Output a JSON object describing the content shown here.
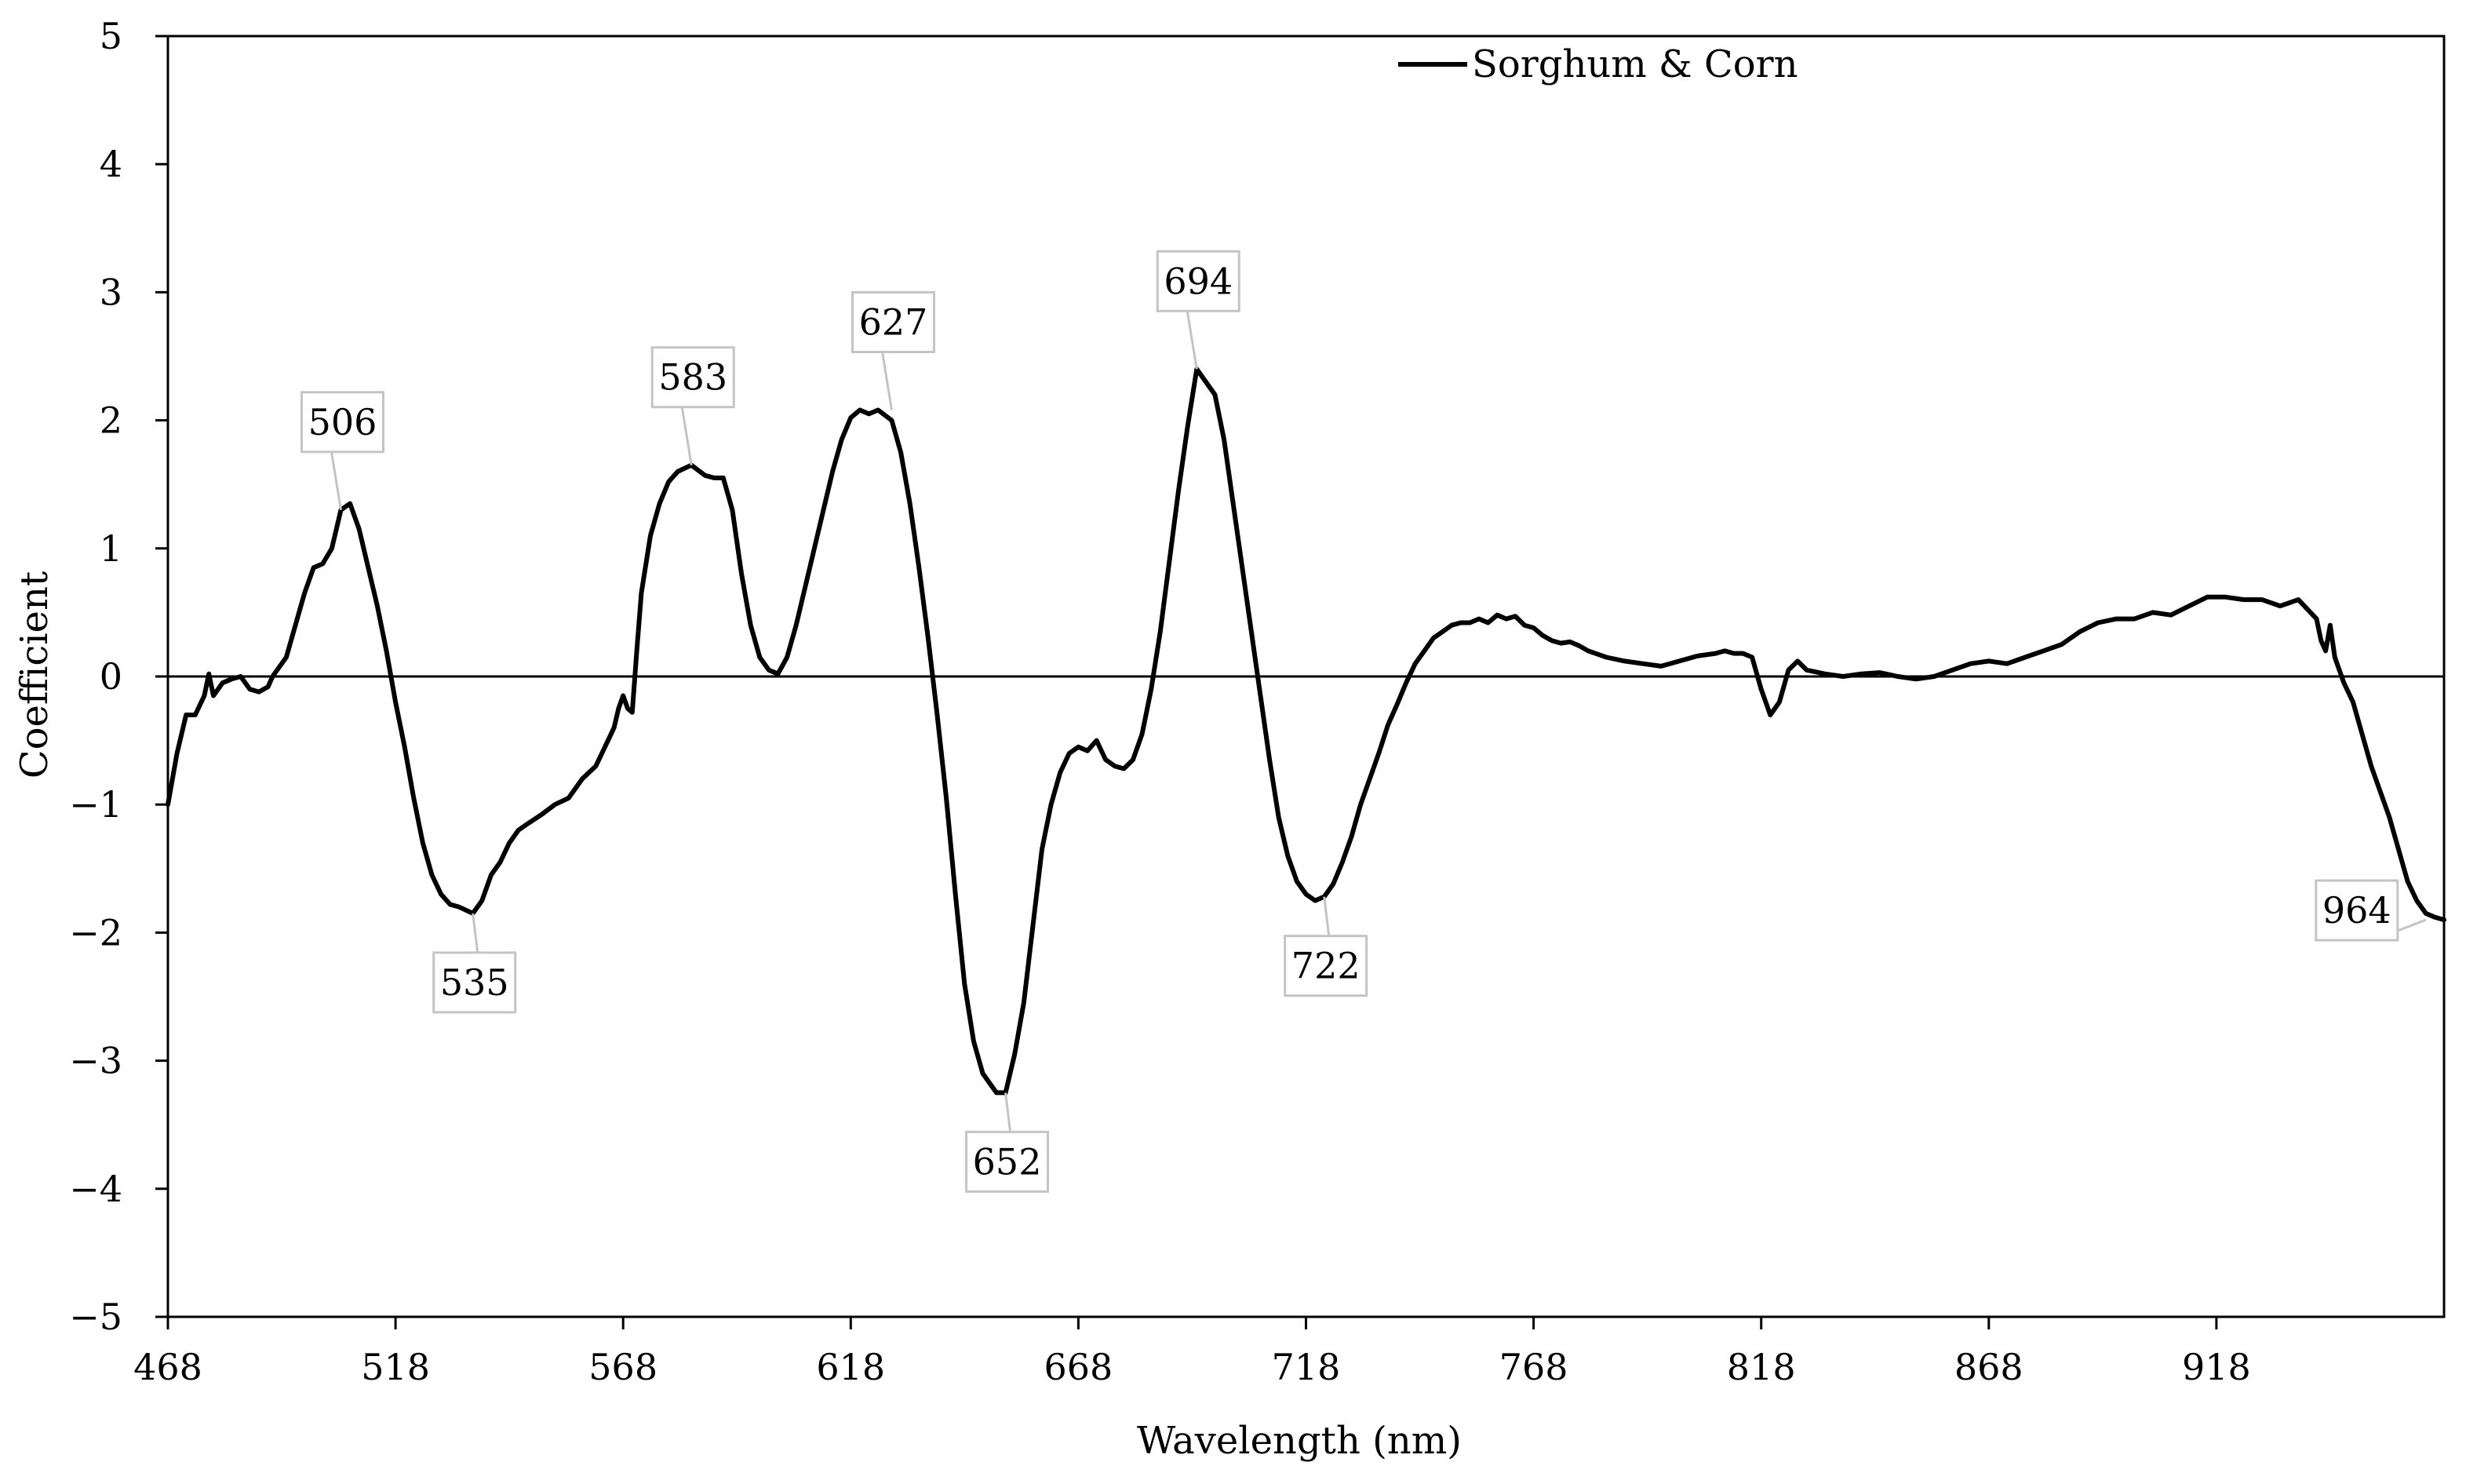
{
  "chart_data": {
    "type": "line",
    "xlabel": "Wavelength (nm)",
    "ylabel": "Coefficient",
    "xlim": [
      468,
      968
    ],
    "ylim": [
      -5,
      5
    ],
    "x_ticks": [
      468,
      518,
      568,
      618,
      668,
      718,
      768,
      818,
      868,
      918
    ],
    "x_tick_labels": [
      "468",
      "518",
      "568",
      "618",
      "668",
      "718",
      "768",
      "818",
      "868",
      "918"
    ],
    "y_ticks": [
      -5,
      -4,
      -3,
      -2,
      -1,
      0,
      1,
      2,
      3,
      4,
      5
    ],
    "y_tick_labels": [
      "−5",
      "−4",
      "−3",
      "−2",
      "−1",
      "0",
      "1",
      "2",
      "3",
      "4",
      "5"
    ],
    "grid": false,
    "legend": {
      "position": "top-right",
      "entries": [
        "Sorghum & Corn"
      ]
    },
    "series": [
      {
        "name": "Sorghum & Corn",
        "color": "#000000",
        "x": [
          468,
          470,
          472,
          474,
          476,
          477,
          478,
          480,
          482,
          484,
          486,
          488,
          490,
          491,
          492,
          494,
          496,
          498,
          500,
          502,
          504,
          506,
          508,
          510,
          512,
          514,
          516,
          518,
          520,
          522,
          524,
          526,
          528,
          530,
          532,
          535,
          537,
          539,
          541,
          543,
          545,
          547,
          550,
          553,
          556,
          559,
          562,
          564,
          566,
          567,
          568,
          569,
          570,
          571,
          572,
          574,
          576,
          578,
          580,
          583,
          586,
          588,
          590,
          592,
          594,
          596,
          598,
          600,
          602,
          604,
          606,
          608,
          610,
          612,
          614,
          616,
          618,
          620,
          622,
          624,
          627,
          629,
          631,
          633,
          635,
          637,
          639,
          641,
          643,
          645,
          647,
          649,
          650,
          652,
          654,
          656,
          658,
          660,
          662,
          664,
          666,
          668,
          670,
          672,
          674,
          676,
          678,
          680,
          682,
          684,
          686,
          688,
          690,
          692,
          694,
          696,
          698,
          700,
          702,
          704,
          706,
          708,
          710,
          712,
          714,
          716,
          718,
          720,
          722,
          724,
          726,
          728,
          730,
          732,
          734,
          736,
          738,
          740,
          742,
          744,
          746,
          748,
          750,
          752,
          754,
          756,
          758,
          760,
          762,
          764,
          766,
          768,
          770,
          772,
          774,
          776,
          778,
          780,
          784,
          788,
          792,
          796,
          800,
          804,
          808,
          810,
          812,
          814,
          816,
          818,
          820,
          822,
          824,
          826,
          828,
          832,
          836,
          840,
          844,
          848,
          852,
          856,
          860,
          864,
          868,
          872,
          876,
          880,
          884,
          888,
          892,
          896,
          900,
          904,
          908,
          912,
          916,
          920,
          924,
          928,
          932,
          936,
          940,
          941,
          942,
          943,
          944,
          946,
          948,
          950,
          952,
          954,
          956,
          958,
          960,
          962,
          964,
          966,
          968
        ],
        "y": [
          -1.0,
          -0.6,
          -0.3,
          -0.3,
          -0.15,
          0.02,
          -0.15,
          -0.05,
          -0.02,
          0.0,
          -0.1,
          -0.12,
          -0.08,
          0.0,
          0.05,
          0.15,
          0.4,
          0.65,
          0.85,
          0.88,
          1.0,
          1.3,
          1.35,
          1.15,
          0.85,
          0.55,
          0.2,
          -0.2,
          -0.55,
          -0.95,
          -1.3,
          -1.55,
          -1.7,
          -1.78,
          -1.8,
          -1.85,
          -1.75,
          -1.55,
          -1.45,
          -1.3,
          -1.2,
          -1.15,
          -1.08,
          -1.0,
          -0.95,
          -0.8,
          -0.7,
          -0.55,
          -0.4,
          -0.25,
          -0.15,
          -0.25,
          -0.28,
          0.2,
          0.65,
          1.1,
          1.35,
          1.52,
          1.6,
          1.65,
          1.57,
          1.55,
          1.55,
          1.3,
          0.8,
          0.4,
          0.15,
          0.05,
          0.02,
          0.15,
          0.4,
          0.7,
          1.0,
          1.3,
          1.6,
          1.85,
          2.02,
          2.08,
          2.05,
          2.08,
          2.0,
          1.75,
          1.35,
          0.85,
          0.3,
          -0.3,
          -0.95,
          -1.7,
          -2.4,
          -2.85,
          -3.1,
          -3.2,
          -3.25,
          -3.25,
          -2.95,
          -2.55,
          -1.95,
          -1.35,
          -1.0,
          -0.75,
          -0.6,
          -0.55,
          -0.58,
          -0.5,
          -0.65,
          -0.7,
          -0.72,
          -0.65,
          -0.45,
          -0.1,
          0.35,
          0.9,
          1.45,
          1.95,
          2.4,
          2.3,
          2.2,
          1.85,
          1.35,
          0.85,
          0.35,
          -0.15,
          -0.65,
          -1.1,
          -1.4,
          -1.6,
          -1.7,
          -1.75,
          -1.72,
          -1.62,
          -1.45,
          -1.25,
          -1.0,
          -0.8,
          -0.6,
          -0.38,
          -0.22,
          -0.05,
          0.1,
          0.2,
          0.3,
          0.35,
          0.4,
          0.42,
          0.42,
          0.45,
          0.42,
          0.48,
          0.45,
          0.47,
          0.4,
          0.38,
          0.32,
          0.28,
          0.26,
          0.27,
          0.24,
          0.2,
          0.15,
          0.12,
          0.1,
          0.08,
          0.12,
          0.16,
          0.18,
          0.2,
          0.18,
          0.18,
          0.15,
          -0.1,
          -0.3,
          -0.2,
          0.05,
          0.12,
          0.05,
          0.02,
          0.0,
          0.02,
          0.03,
          0.0,
          -0.02,
          0.0,
          0.05,
          0.1,
          0.12,
          0.1,
          0.15,
          0.2,
          0.25,
          0.35,
          0.42,
          0.45,
          0.45,
          0.5,
          0.48,
          0.55,
          0.62,
          0.62,
          0.6,
          0.6,
          0.55,
          0.6,
          0.45,
          0.28,
          0.2,
          0.4,
          0.15,
          -0.05,
          -0.2,
          -0.45,
          -0.7,
          -0.9,
          -1.1,
          -1.35,
          -1.6,
          -1.75,
          -1.85,
          -1.88,
          -1.9
        ]
      }
    ],
    "annotations": [
      {
        "label": "506",
        "x": 506,
        "y": 1.3,
        "placement": "above"
      },
      {
        "label": "583",
        "x": 583,
        "y": 1.65,
        "placement": "above"
      },
      {
        "label": "627",
        "x": 627,
        "y": 2.08,
        "placement": "above"
      },
      {
        "label": "694",
        "x": 694,
        "y": 2.4,
        "placement": "above"
      },
      {
        "label": "535",
        "x": 535,
        "y": -1.85,
        "placement": "below"
      },
      {
        "label": "652",
        "x": 652,
        "y": -3.25,
        "placement": "below"
      },
      {
        "label": "722",
        "x": 722,
        "y": -1.72,
        "placement": "below"
      },
      {
        "label": "964",
        "x": 964,
        "y": -1.9,
        "placement": "left"
      }
    ]
  }
}
